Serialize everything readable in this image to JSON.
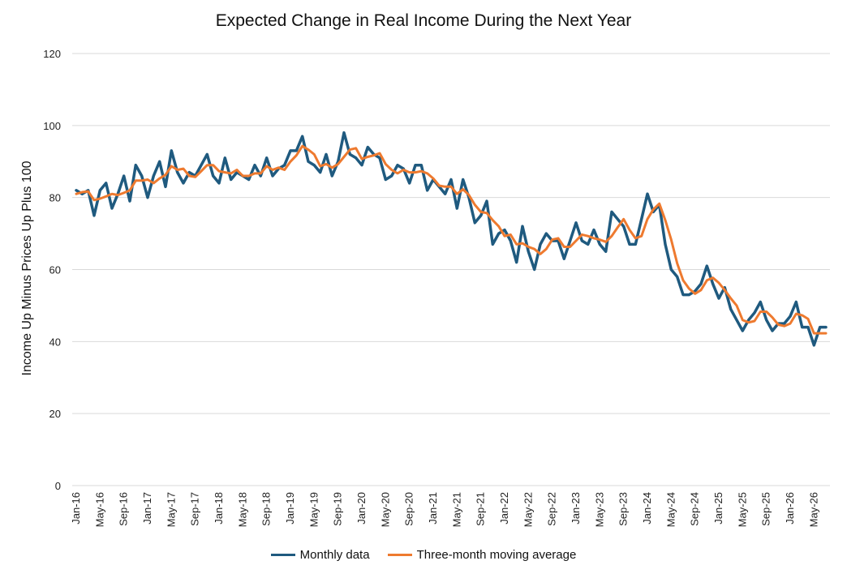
{
  "chart_data": {
    "type": "line",
    "title": "Expected Change in Real Income During the Next Year",
    "xlabel": "",
    "ylabel": "Income Up Minus Prices Up Plus 100",
    "ylim": [
      0,
      120
    ],
    "yticks": [
      0,
      20,
      40,
      60,
      80,
      100,
      120
    ],
    "grid": true,
    "legend_position": "bottom",
    "x_start": "Jan-16",
    "x_labels": [
      "Jan-16",
      "May-16",
      "Sep-16",
      "Jan-17",
      "May-17",
      "Sep-17",
      "Jan-18",
      "May-18",
      "Sep-18",
      "Jan-19",
      "May-19",
      "Sep-19",
      "Jan-20",
      "May-20",
      "Sep-20",
      "Jan-21",
      "May-21",
      "Sep-21",
      "Jan-22",
      "May-22",
      "Sep-22",
      "Jan-23",
      "May-23",
      "Sep-23",
      "Jan-24",
      "May-24",
      "Sep-24",
      "Jan-25",
      "May-25",
      "Sep-25",
      "Jan-26",
      "May-26"
    ],
    "series": [
      {
        "name": "Monthly data",
        "color": "#1f5a7f",
        "values": [
          82,
          81,
          82,
          75,
          82,
          84,
          77,
          81,
          86,
          79,
          89,
          86,
          80,
          86,
          90,
          83,
          93,
          87,
          84,
          87,
          86,
          89,
          92,
          86,
          84,
          91,
          85,
          87,
          86,
          85,
          89,
          86,
          91,
          86,
          88,
          89,
          93,
          93,
          97,
          90,
          89,
          87,
          92,
          86,
          90,
          98,
          92,
          91,
          89,
          94,
          92,
          91,
          85,
          86,
          89,
          88,
          84,
          89,
          89,
          82,
          85,
          83,
          81,
          85,
          77,
          85,
          80,
          73,
          75,
          79,
          67,
          70,
          71,
          68,
          62,
          72,
          65,
          60,
          67,
          70,
          68,
          68,
          63,
          68,
          73,
          68,
          67,
          71,
          67,
          65,
          76,
          74,
          72,
          67,
          67,
          74,
          81,
          76,
          78,
          67,
          60,
          58,
          53,
          53,
          54,
          56,
          61,
          56,
          52,
          55,
          49,
          46,
          43,
          46,
          48,
          51,
          46,
          43,
          45,
          45,
          47,
          51,
          44,
          44,
          39,
          44,
          44
        ],
        "line_width": 3.5
      },
      {
        "name": "Three-month moving average",
        "color": "#ee7a2f",
        "values": [
          81,
          81.5,
          81.7,
          79.3,
          79.7,
          80.3,
          81,
          80.7,
          81.3,
          82,
          84.7,
          84.7,
          85,
          84,
          85.3,
          86.3,
          88.7,
          87.7,
          88,
          86,
          85.7,
          87.3,
          89,
          89,
          87.3,
          87,
          86.7,
          87.7,
          86,
          86,
          86.7,
          86.7,
          88.7,
          87.7,
          88.3,
          87.7,
          90,
          91.7,
          94.3,
          93.3,
          92,
          88.7,
          89.3,
          88.3,
          89.3,
          91.3,
          93.3,
          93.7,
          90.7,
          91.3,
          91.7,
          92.3,
          89.3,
          87.7,
          86.7,
          87.7,
          87,
          87,
          87.3,
          86.7,
          85.3,
          83.3,
          83,
          83,
          81,
          82.3,
          80.7,
          78,
          76,
          75.7,
          73.7,
          72,
          69.3,
          69.7,
          67,
          67.3,
          66.3,
          65.7,
          64.3,
          65.7,
          68.3,
          68.7,
          66.3,
          66.3,
          68,
          69.7,
          69.3,
          68.7,
          68.3,
          67.7,
          69.3,
          71.7,
          74,
          71,
          68.7,
          69.3,
          74,
          76.7,
          78.3,
          73.7,
          68.3,
          61.7,
          57,
          54.7,
          53.3,
          54.3,
          57,
          57.7,
          56.3,
          54.3,
          52,
          50,
          46,
          45.3,
          45.7,
          48.3,
          48.3,
          46.7,
          44.7,
          44.3,
          45,
          47.7,
          47.3,
          46.3,
          42.3,
          42.3,
          42.3
        ],
        "line_width": 3
      }
    ]
  },
  "legend": {
    "items": [
      {
        "label": "Monthly data",
        "color": "#1f5a7f"
      },
      {
        "label": "Three-month moving average",
        "color": "#ee7a2f"
      }
    ]
  }
}
